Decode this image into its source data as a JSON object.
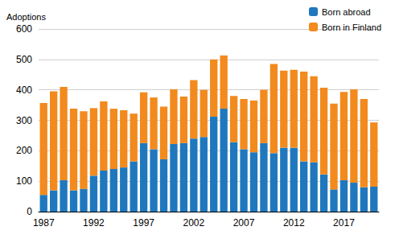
{
  "chart_data": {
    "type": "bar",
    "ylabel": "Adoptions",
    "categories": [
      "1987",
      null,
      null,
      null,
      null,
      "1992",
      null,
      null,
      null,
      null,
      "1997",
      null,
      null,
      null,
      null,
      "2002",
      null,
      null,
      null,
      null,
      "2007",
      null,
      null,
      null,
      null,
      "2012",
      null,
      null,
      null,
      null,
      "2017",
      null,
      null,
      null
    ],
    "series": [
      {
        "name": "Born abroad",
        "color": "#1f78bd",
        "values": [
          55,
          70,
          103,
          70,
          75,
          118,
          135,
          140,
          145,
          165,
          225,
          205,
          172,
          222,
          225,
          240,
          245,
          312,
          338,
          228,
          205,
          195,
          225,
          192,
          210,
          210,
          165,
          162,
          122,
          73,
          103,
          95,
          80,
          82
        ]
      },
      {
        "name": "Born in Finland",
        "color": "#f28a1e",
        "values": [
          302,
          325,
          307,
          268,
          255,
          222,
          227,
          198,
          188,
          157,
          167,
          170,
          173,
          180,
          153,
          192,
          155,
          188,
          175,
          152,
          165,
          170,
          175,
          293,
          253,
          256,
          295,
          283,
          285,
          282,
          290,
          307,
          290,
          211
        ]
      }
    ],
    "stacked": true,
    "ylim": [
      0,
      600
    ],
    "yticks": [
      0,
      100,
      200,
      300,
      400,
      500,
      600
    ],
    "grid": true,
    "legend": "upper right"
  }
}
